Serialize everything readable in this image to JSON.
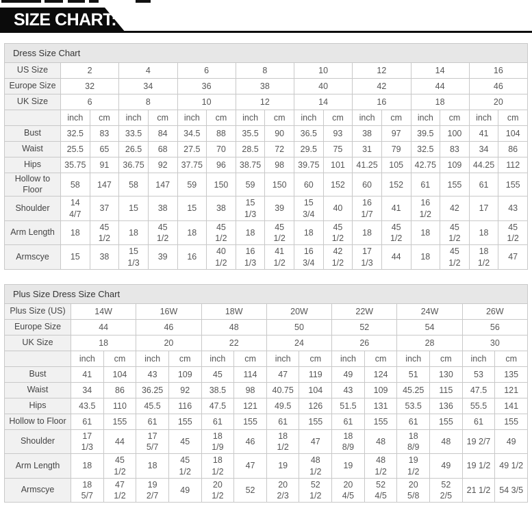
{
  "banner": {
    "title": "SIZE CHART:",
    "bg_color": "#0b0b0b",
    "text_color": "#ffffff"
  },
  "colors": {
    "title_row_bg": "#e7e7e7",
    "label_col_bg": "#f1f1f1",
    "border": "#c8c8c8",
    "value_text": "#555555"
  },
  "tables": [
    {
      "id": "dress-size-chart",
      "title": "Dress Size Chart",
      "size_rows": [
        {
          "label": "US Size",
          "values": [
            "2",
            "4",
            "6",
            "8",
            "10",
            "12",
            "14",
            "16"
          ]
        },
        {
          "label": "Europe Size",
          "values": [
            "32",
            "34",
            "36",
            "38",
            "40",
            "42",
            "44",
            "46"
          ]
        },
        {
          "label": "UK Size",
          "values": [
            "6",
            "8",
            "10",
            "12",
            "14",
            "16",
            "18",
            "20"
          ]
        }
      ],
      "unit_cells": [
        "inch",
        "cm",
        "inch",
        "cm",
        "inch",
        "cm",
        "inch",
        "cm",
        "inch",
        "cm",
        "inch",
        "cm",
        "inch",
        "cm",
        "inch",
        "cm"
      ],
      "measure_rows": [
        {
          "label": "Bust",
          "values": [
            "32.5",
            "83",
            "33.5",
            "84",
            "34.5",
            "88",
            "35.5",
            "90",
            "36.5",
            "93",
            "38",
            "97",
            "39.5",
            "100",
            "41",
            "104"
          ]
        },
        {
          "label": "Waist",
          "values": [
            "25.5",
            "65",
            "26.5",
            "68",
            "27.5",
            "70",
            "28.5",
            "72",
            "29.5",
            "75",
            "31",
            "79",
            "32.5",
            "83",
            "34",
            "86"
          ]
        },
        {
          "label": "Hips",
          "values": [
            "35.75",
            "91",
            "36.75",
            "92",
            "37.75",
            "96",
            "38.75",
            "98",
            "39.75",
            "101",
            "41.25",
            "105",
            "42.75",
            "109",
            "44.25",
            "112"
          ]
        },
        {
          "label": "Hollow to Floor",
          "values": [
            "58",
            "147",
            "58",
            "147",
            "59",
            "150",
            "59",
            "150",
            "60",
            "152",
            "60",
            "152",
            "61",
            "155",
            "61",
            "155"
          ]
        },
        {
          "label": "Shoulder",
          "values": [
            "14\n4/7",
            "37",
            "15",
            "38",
            "15",
            "38",
            "15\n1/3",
            "39",
            "15\n3/4",
            "40",
            "16\n1/7",
            "41",
            "16\n1/2",
            "42",
            "17",
            "43"
          ]
        },
        {
          "label": "Arm Length",
          "values": [
            "18",
            "45\n1/2",
            "18",
            "45\n1/2",
            "18",
            "45\n1/2",
            "18",
            "45\n1/2",
            "18",
            "45\n1/2",
            "18",
            "45\n1/2",
            "18",
            "45\n1/2",
            "18",
            "45\n1/2"
          ]
        },
        {
          "label": "Armscye",
          "values": [
            "15",
            "38",
            "15\n1/3",
            "39",
            "16",
            "40\n1/2",
            "16\n1/3",
            "41\n1/2",
            "16\n3/4",
            "42\n1/2",
            "17\n1/3",
            "44",
            "18",
            "45\n1/2",
            "18\n1/2",
            "47"
          ]
        }
      ]
    },
    {
      "id": "plus-size-dress-size-chart",
      "title": "Plus Size Dress Size Chart",
      "size_rows": [
        {
          "label": "Plus Size (US)",
          "values": [
            "14W",
            "16W",
            "18W",
            "20W",
            "22W",
            "24W",
            "26W"
          ]
        },
        {
          "label": "Europe Size",
          "values": [
            "44",
            "46",
            "48",
            "50",
            "52",
            "54",
            "56"
          ]
        },
        {
          "label": "UK Size",
          "values": [
            "18",
            "20",
            "22",
            "24",
            "26",
            "28",
            "30"
          ]
        }
      ],
      "unit_cells": [
        "inch",
        "cm",
        "inch",
        "cm",
        "inch",
        "cm",
        "inch",
        "cm",
        "inch",
        "cm",
        "inch",
        "cm",
        "inch",
        "cm"
      ],
      "measure_rows": [
        {
          "label": "Bust",
          "values": [
            "41",
            "104",
            "43",
            "109",
            "45",
            "114",
            "47",
            "119",
            "49",
            "124",
            "51",
            "130",
            "53",
            "135"
          ]
        },
        {
          "label": "Waist",
          "values": [
            "34",
            "86",
            "36.25",
            "92",
            "38.5",
            "98",
            "40.75",
            "104",
            "43",
            "109",
            "45.25",
            "115",
            "47.5",
            "121"
          ]
        },
        {
          "label": "Hips",
          "values": [
            "43.5",
            "110",
            "45.5",
            "116",
            "47.5",
            "121",
            "49.5",
            "126",
            "51.5",
            "131",
            "53.5",
            "136",
            "55.5",
            "141"
          ]
        },
        {
          "label": "Hollow to Floor",
          "values": [
            "61",
            "155",
            "61",
            "155",
            "61",
            "155",
            "61",
            "155",
            "61",
            "155",
            "61",
            "155",
            "61",
            "155"
          ]
        },
        {
          "label": "Shoulder",
          "values": [
            "17\n1/3",
            "44",
            "17\n5/7",
            "45",
            "18\n1/9",
            "46",
            "18\n1/2",
            "47",
            "18\n8/9",
            "48",
            "18\n8/9",
            "48",
            "19 2/7",
            "49"
          ]
        },
        {
          "label": "Arm Length",
          "values": [
            "18",
            "45\n1/2",
            "18",
            "45\n1/2",
            "18\n1/2",
            "47",
            "19",
            "48\n1/2",
            "19",
            "48\n1/2",
            "19\n1/2",
            "49",
            "19 1/2",
            "49 1/2"
          ]
        },
        {
          "label": "Armscye",
          "values": [
            "18\n5/7",
            "47\n1/2",
            "19\n2/7",
            "49",
            "20\n1/2",
            "52",
            "20\n2/3",
            "52\n1/2",
            "20\n4/5",
            "52\n4/5",
            "20\n5/8",
            "52\n2/5",
            "21 1/2",
            "54 3/5"
          ]
        }
      ]
    }
  ]
}
